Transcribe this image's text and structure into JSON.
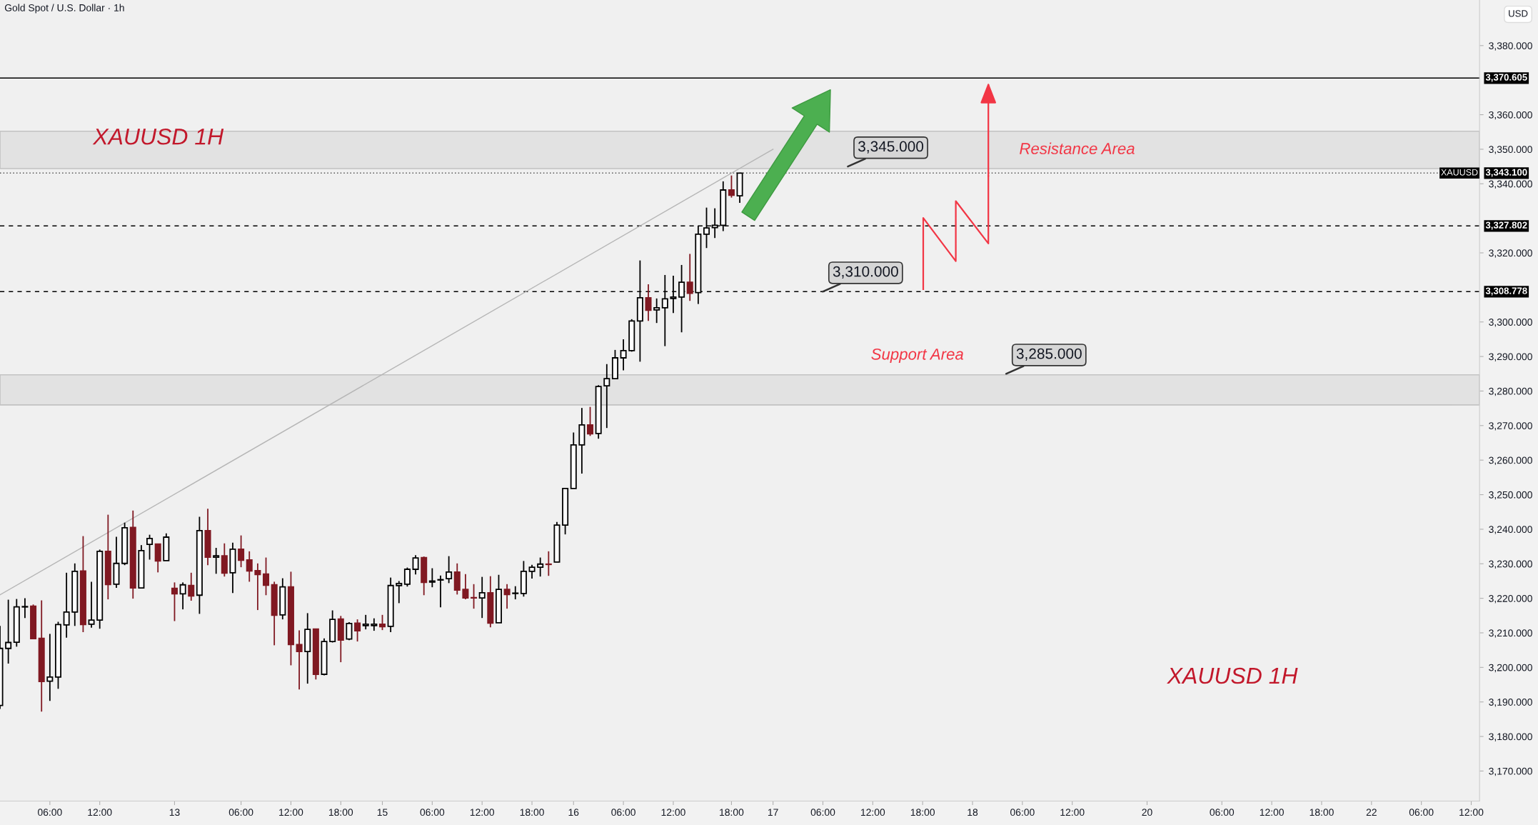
{
  "chart_data": {
    "type": "candlestick",
    "title": "Gold Spot / U.S. Dollar · 1h",
    "ylabel": "USD",
    "categories": [
      null,
      null,
      null,
      null,
      null,
      null,
      "06:00",
      null,
      null,
      null,
      null,
      null,
      "12:00",
      null,
      null,
      null,
      null,
      null,
      null,
      null,
      null,
      "13",
      null,
      null,
      null,
      null,
      null,
      null,
      null,
      "06:00",
      null,
      null,
      null,
      null,
      null,
      "12:00",
      null,
      null,
      null,
      null,
      null,
      "18:00",
      null,
      null,
      null,
      null,
      "15",
      null,
      null,
      null,
      null,
      null,
      "06:00",
      null,
      null,
      null,
      null,
      null,
      "12:00",
      null,
      null,
      null,
      null,
      null,
      "18:00",
      null,
      null,
      null,
      null,
      "16",
      null,
      null,
      null,
      null,
      null,
      "06:00",
      null,
      null,
      null,
      null,
      null,
      "12:00",
      null,
      null,
      null,
      null,
      null,
      null,
      "18:00",
      null,
      null,
      null,
      null,
      "17",
      null,
      null,
      null,
      null,
      null,
      "06:00",
      null,
      null,
      null,
      null,
      null,
      "12:00",
      null,
      null,
      null,
      null,
      null,
      "18:00",
      null,
      null,
      null,
      null,
      null,
      "18",
      null,
      null,
      null,
      null,
      null,
      "06:00",
      null,
      null,
      null,
      null,
      null,
      "12:00",
      null,
      null,
      null,
      null,
      null,
      null,
      null,
      null,
      "20",
      null,
      null,
      null,
      null,
      null,
      null,
      null,
      null,
      "06:00",
      null,
      null,
      null,
      null,
      null,
      "12:00",
      null,
      null,
      null,
      null,
      null,
      "18:00",
      null,
      null,
      null,
      null,
      null,
      "22",
      null,
      null,
      null,
      null,
      null,
      "06:00",
      null,
      null,
      null,
      null,
      null,
      "12:00"
    ],
    "ohlc": [
      [
        3189.0,
        3212.0,
        3188.0,
        3205.5
      ],
      [
        3205.5,
        3219.6,
        3201.1,
        3207.2
      ],
      [
        3207.3,
        3219.8,
        3206.0,
        3217.5
      ],
      [
        3217.5,
        3220.0,
        3214.3,
        3217.6
      ],
      [
        3217.7,
        3218.2,
        3208.3,
        3208.3
      ],
      [
        3208.4,
        3219.4,
        3187.2,
        3195.9
      ],
      [
        3196.0,
        3209.7,
        3190.3,
        3197.2
      ],
      [
        3197.2,
        3213.2,
        3193.8,
        3212.4
      ],
      [
        3212.3,
        3227.4,
        3208.6,
        3216.0
      ],
      [
        3216.0,
        3230.1,
        3212.0,
        3227.8
      ],
      [
        3227.9,
        3238.0,
        3210.2,
        3212.4
      ],
      [
        3212.5,
        3224.8,
        3211.5,
        3213.7
      ],
      [
        3213.7,
        3234.1,
        3211.2,
        3233.6
      ],
      [
        3233.6,
        3244.2,
        3219.7,
        3224.0
      ],
      [
        3224.1,
        3237.8,
        3223.0,
        3230.1
      ],
      [
        3230.1,
        3241.9,
        3229.6,
        3240.4
      ],
      [
        3240.5,
        3245.4,
        3219.9,
        3223.0
      ],
      [
        3223.0,
        3235.4,
        3223.0,
        3233.8
      ],
      [
        3235.6,
        3238.4,
        3231.2,
        3237.3
      ],
      [
        3235.7,
        3235.7,
        3227.5,
        3230.8
      ],
      [
        3230.9,
        3238.8,
        3230.9,
        3237.7
      ],
      [
        3222.9,
        3224.6,
        3213.4,
        3221.3
      ],
      [
        3221.3,
        3224.6,
        3216.8,
        3223.9
      ],
      [
        3223.7,
        3227.4,
        3219.3,
        3220.7
      ],
      [
        3220.9,
        3243.6,
        3215.5,
        3239.6
      ],
      [
        3239.6,
        3245.9,
        3229.6,
        3231.9
      ],
      [
        3231.9,
        3234.6,
        3227.1,
        3232.3
      ],
      [
        3232.3,
        3235.9,
        3226.3,
        3227.3
      ],
      [
        3227.4,
        3236.1,
        3221.5,
        3234.2
      ],
      [
        3234.2,
        3238.2,
        3229.0,
        3231.0
      ],
      [
        3231.1,
        3233.6,
        3224.8,
        3227.9
      ],
      [
        3228.0,
        3230.1,
        3216.6,
        3226.9
      ],
      [
        3227.0,
        3231.8,
        3220.9,
        3223.8
      ],
      [
        3223.9,
        3224.8,
        3206.4,
        3215.1
      ],
      [
        3215.2,
        3225.8,
        3213.9,
        3223.3
      ],
      [
        3223.3,
        3227.7,
        3200.6,
        3206.6
      ],
      [
        3206.6,
        3210.7,
        3193.6,
        3204.6
      ],
      [
        3204.6,
        3215.7,
        3195.3,
        3211.0
      ],
      [
        3211.1,
        3211.1,
        3196.5,
        3198.0
      ],
      [
        3198.0,
        3208.4,
        3197.7,
        3207.5
      ],
      [
        3207.5,
        3216.5,
        3207.2,
        3213.9
      ],
      [
        3214.0,
        3214.9,
        3201.5,
        3207.9
      ],
      [
        3208.2,
        3213.1,
        3207.9,
        3212.7
      ],
      [
        3212.8,
        3213.9,
        3207.5,
        3210.6
      ],
      [
        3212.1,
        3215.2,
        3211.0,
        3212.5
      ],
      [
        3212.1,
        3214.2,
        3210.6,
        3212.5
      ],
      [
        3212.5,
        3215.2,
        3210.8,
        3211.8
      ],
      [
        3211.9,
        3226.0,
        3210.2,
        3223.7
      ],
      [
        3223.7,
        3225.0,
        3218.6,
        3224.3
      ],
      [
        3224.1,
        3228.9,
        3223.4,
        3228.4
      ],
      [
        3228.4,
        3232.5,
        3226.9,
        3231.7
      ],
      [
        3231.8,
        3232.1,
        3220.9,
        3224.6
      ],
      [
        3224.7,
        3228.7,
        3223.2,
        3225.0
      ],
      [
        3225.3,
        3226.6,
        3217.4,
        3225.4
      ],
      [
        3225.7,
        3232.2,
        3224.4,
        3227.6
      ],
      [
        3227.6,
        3230.1,
        3221.1,
        3222.4
      ],
      [
        3222.6,
        3227.0,
        3219.7,
        3220.1
      ],
      [
        3220.2,
        3224.1,
        3217.0,
        3220.1
      ],
      [
        3220.1,
        3226.2,
        3214.3,
        3221.6
      ],
      [
        3221.6,
        3226.4,
        3211.6,
        3212.8
      ],
      [
        3212.9,
        3226.8,
        3212.9,
        3222.6
      ],
      [
        3222.6,
        3224.1,
        3217.0,
        3221.1
      ],
      [
        3221.4,
        3223.5,
        3219.7,
        3221.5
      ],
      [
        3221.4,
        3230.8,
        3220.5,
        3227.8
      ],
      [
        3227.8,
        3229.7,
        3225.7,
        3229.0
      ],
      [
        3229.0,
        3231.8,
        3226.3,
        3229.9
      ],
      [
        3229.9,
        3233.6,
        3226.5,
        3229.8
      ],
      [
        3230.5,
        3242.1,
        3230.5,
        3241.2
      ],
      [
        3241.2,
        3251.8,
        3238.5,
        3251.8
      ],
      [
        3251.8,
        3268.0,
        3251.8,
        3264.4
      ],
      [
        3264.4,
        3275.1,
        3256.1,
        3270.2
      ],
      [
        3270.2,
        3275.4,
        3267.0,
        3267.6
      ],
      [
        3267.7,
        3281.7,
        3266.2,
        3281.3
      ],
      [
        3281.5,
        3287.8,
        3269.3,
        3283.6
      ],
      [
        3283.6,
        3291.9,
        3283.6,
        3289.6
      ],
      [
        3289.6,
        3295.0,
        3286.0,
        3291.7
      ],
      [
        3291.7,
        3300.8,
        3291.4,
        3300.3
      ],
      [
        3300.3,
        3317.8,
        3288.5,
        3307.0
      ],
      [
        3307.0,
        3310.9,
        3300.3,
        3303.4
      ],
      [
        3303.5,
        3306.8,
        3299.7,
        3304.1
      ],
      [
        3304.1,
        3313.6,
        3293.0,
        3306.7
      ],
      [
        3306.8,
        3313.4,
        3302.6,
        3307.2
      ],
      [
        3307.2,
        3316.5,
        3297.0,
        3311.5
      ],
      [
        3311.5,
        3319.7,
        3306.1,
        3308.3
      ],
      [
        3308.5,
        3327.9,
        3305.2,
        3325.4
      ],
      [
        3325.4,
        3333.1,
        3321.4,
        3327.2
      ],
      [
        3327.3,
        3332.9,
        3324.3,
        3328.0
      ],
      [
        3328.0,
        3340.7,
        3326.3,
        3338.2
      ],
      [
        3338.2,
        3342.4,
        3336.0,
        3336.7
      ],
      [
        3336.5,
        3343.1,
        3334.5,
        3343.1
      ],
      null,
      null,
      null,
      null,
      null,
      null,
      null,
      null,
      null,
      null,
      null,
      null,
      null,
      null,
      null,
      null,
      null,
      null,
      null,
      null,
      null,
      null,
      null,
      null,
      null,
      null,
      null,
      null,
      null,
      null,
      null,
      null,
      null,
      null,
      null,
      null,
      null,
      null,
      null,
      null,
      null,
      null,
      null,
      null,
      null,
      null,
      null,
      null,
      null,
      null,
      null,
      null,
      null,
      null,
      null,
      null,
      null,
      null,
      null,
      null,
      null,
      null,
      null,
      null,
      null,
      null,
      null,
      null,
      null,
      null,
      null,
      null,
      null,
      null,
      null,
      null,
      null,
      null,
      null,
      null,
      null,
      null,
      null,
      null,
      null,
      null,
      null,
      null
    ],
    "colors": [
      "#ffffff",
      "#ffffff",
      "#ffffff",
      "#ffffff",
      "#801922",
      "#801922",
      "#ffffff",
      "#ffffff",
      "#ffffff",
      "#ffffff",
      "#801922",
      "#ffffff",
      "#ffffff",
      "#801922",
      "#ffffff",
      "#ffffff",
      "#801922",
      "#ffffff",
      "#ffffff",
      "#801922",
      "#ffffff",
      "#801922",
      "#ffffff",
      "#801922",
      "#ffffff",
      "#801922",
      "#ffffff",
      "#801922",
      "#ffffff",
      "#801922",
      "#801922",
      "#801922",
      "#801922",
      "#801922",
      "#ffffff",
      "#801922",
      "#801922",
      "#ffffff",
      "#801922",
      "#ffffff",
      "#ffffff",
      "#801922",
      "#ffffff",
      "#801922",
      "#ffffff",
      "#ffffff",
      "#801922",
      "#ffffff",
      "#ffffff",
      "#ffffff",
      "#ffffff",
      "#801922",
      "#ffffff",
      "#ffffff",
      "#ffffff",
      "#801922",
      "#801922",
      "#801922",
      "#ffffff",
      "#801922",
      "#ffffff",
      "#801922",
      "#ffffff",
      "#ffffff",
      "#ffffff",
      "#ffffff",
      "#801922",
      "#ffffff",
      "#ffffff",
      "#ffffff",
      "#ffffff",
      "#801922",
      "#ffffff",
      "#ffffff",
      "#ffffff",
      "#ffffff",
      "#ffffff",
      "#ffffff",
      "#801922",
      "#ffffff",
      "#ffffff",
      "#ffffff",
      "#ffffff",
      "#801922",
      "#ffffff",
      "#ffffff",
      "#ffffff",
      "#ffffff",
      "#801922",
      "#ffffff",
      null,
      null,
      null,
      null,
      null,
      null,
      null,
      null,
      null,
      null,
      null,
      null,
      null,
      null,
      null,
      null,
      null,
      null,
      null,
      null,
      null,
      null,
      null,
      null,
      null,
      null,
      null,
      null,
      null,
      null,
      null,
      null,
      null,
      null,
      null,
      null,
      null,
      null,
      null,
      null,
      null,
      null,
      null,
      null,
      null,
      null,
      null,
      null,
      null,
      null,
      null,
      null,
      null,
      null,
      null,
      null,
      null,
      null,
      null,
      null,
      null,
      null,
      null,
      null,
      null,
      null,
      null,
      null,
      null,
      null,
      null,
      null,
      null,
      null,
      null,
      null,
      null,
      null,
      null,
      null,
      null,
      null,
      null,
      null,
      null,
      null,
      null,
      null
    ],
    "series": [
      {
        "type": "line",
        "color": "#b5b5b5",
        "values": [
          3221,
          null,
          null,
          null,
          null,
          null,
          null,
          null,
          null,
          null,
          null,
          null,
          null,
          null,
          null,
          null,
          null,
          null,
          null,
          null,
          null,
          null,
          null,
          null,
          null,
          null,
          null,
          null,
          null,
          null,
          null,
          null,
          null,
          null,
          null,
          null,
          null,
          null,
          null,
          null,
          null,
          null,
          null,
          null,
          null,
          null,
          null,
          null,
          null,
          null,
          null,
          null,
          null,
          null,
          null,
          null,
          null,
          null,
          null,
          null,
          null,
          null,
          null,
          null,
          null,
          null,
          null,
          null,
          null,
          null,
          null,
          null,
          null,
          null,
          null,
          null,
          null,
          null,
          null,
          null,
          null,
          null,
          null,
          null,
          null,
          null,
          null,
          null,
          null,
          null,
          null,
          null,
          null,
          3350,
          null,
          null,
          null,
          null,
          null,
          null,
          null,
          null,
          null,
          null,
          null,
          null,
          null,
          null,
          null,
          null,
          null,
          null,
          null,
          null,
          null,
          null,
          null,
          null,
          null,
          null,
          null,
          null,
          null,
          null,
          null,
          null,
          null,
          null,
          null,
          null,
          null,
          null,
          null,
          null,
          null,
          null,
          null,
          null,
          null,
          null,
          null,
          null,
          null,
          null,
          null,
          null,
          null,
          null,
          null,
          null,
          null,
          null,
          null,
          null,
          null,
          null,
          null,
          null,
          null,
          null,
          null,
          null,
          null,
          null,
          null,
          null,
          null,
          null,
          null,
          null,
          null,
          null,
          null,
          null,
          null,
          null,
          null,
          null
        ]
      }
    ],
    "ylim": [
      3161.3,
      3393.2
    ],
    "yticks": [
      {
        "value": 3170,
        "label": "3,170.000"
      },
      {
        "value": 3180,
        "label": "3,180.000"
      },
      {
        "value": 3190,
        "label": "3,190.000"
      },
      {
        "value": 3200,
        "label": "3,200.000"
      },
      {
        "value": 3210,
        "label": "3,210.000"
      },
      {
        "value": 3220,
        "label": "3,220.000"
      },
      {
        "value": 3230,
        "label": "3,230.000"
      },
      {
        "value": 3240,
        "label": "3,240.000"
      },
      {
        "value": 3250,
        "label": "3,250.000"
      },
      {
        "value": 3260,
        "label": "3,260.000"
      },
      {
        "value": 3270,
        "label": "3,270.000"
      },
      {
        "value": 3280,
        "label": "3,280.000"
      },
      {
        "value": 3290,
        "label": "3,290.000"
      },
      {
        "value": 3300,
        "label": "3,300.000"
      },
      {
        "value": 3320,
        "label": "3,320.000"
      },
      {
        "value": 3340,
        "label": "3,340.000"
      },
      {
        "value": 3350,
        "label": "3,350.000"
      },
      {
        "value": 3360,
        "label": "3,360.000"
      },
      {
        "value": 3380,
        "label": "3,380.000"
      }
    ],
    "ref_lines": [
      {
        "axis": "y",
        "value": 3370.605,
        "label": "3,370.605",
        "color": "#000000",
        "line_style": "solid"
      },
      {
        "axis": "y",
        "value": 3343.1,
        "label": "3,343.100",
        "color": "#555555",
        "line_style": "dotted"
      },
      {
        "axis": "y",
        "value": 3327.802,
        "label": "3,327.802",
        "color": "#000000",
        "line_style": "dashed"
      },
      {
        "axis": "y",
        "value": 3308.778,
        "label": "3,308.778",
        "color": "#000000",
        "line_style": "dashed"
      }
    ],
    "bands": [
      {
        "axis": "y",
        "from": 3344.4,
        "to": 3355.2,
        "label": "Resistance Area",
        "color": "#e0e0e0"
      },
      {
        "axis": "y",
        "from": 3276.0,
        "to": 3284.7,
        "label": "Support Area",
        "color": "#e0e0e0"
      }
    ],
    "annotations": [
      "XAUUSD 1H",
      "XAUUSD 1H",
      "XAUUSD",
      {
        "text": "3,345.000",
        "y": 3345
      },
      {
        "text": "3,310.000",
        "y": 3308.778
      },
      {
        "text": "3,285.000",
        "y": 3285
      }
    ]
  }
}
